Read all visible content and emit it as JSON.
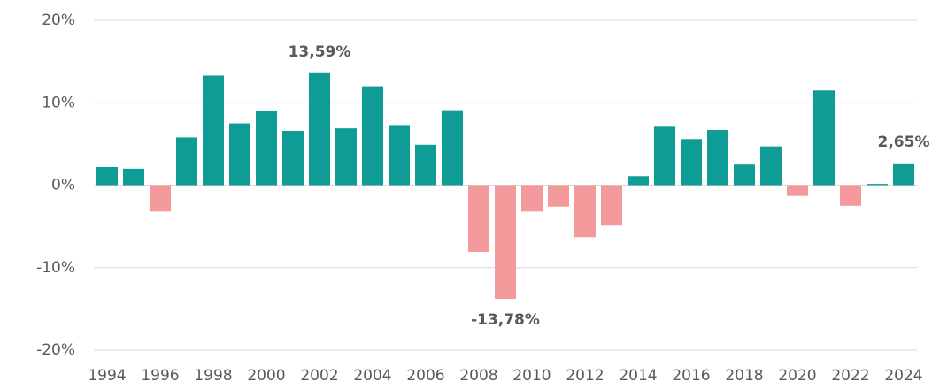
{
  "chart_data": {
    "type": "bar",
    "categories": [
      "1994",
      null,
      "1996",
      null,
      "1998",
      null,
      "2000",
      null,
      "2002",
      null,
      "2004",
      null,
      "2006",
      null,
      "2008",
      null,
      "2010",
      null,
      "2012",
      null,
      "2014",
      null,
      "2016",
      null,
      "2018",
      null,
      "2020",
      null,
      "2022",
      null,
      "2024"
    ],
    "values": [
      2.2,
      2.0,
      -3.2,
      5.8,
      13.3,
      7.5,
      9.0,
      6.6,
      13.59,
      6.9,
      12.0,
      7.3,
      4.9,
      9.1,
      -8.1,
      -13.78,
      -3.2,
      -2.6,
      -6.3,
      -4.9,
      1.1,
      7.1,
      5.6,
      6.7,
      2.5,
      4.7,
      -1.3,
      11.5,
      -2.5,
      0.15,
      2.65
    ],
    "value_labels": [
      null,
      null,
      null,
      null,
      null,
      null,
      null,
      null,
      "13,59%",
      null,
      null,
      null,
      null,
      null,
      null,
      "-13,78%",
      null,
      null,
      null,
      null,
      null,
      null,
      null,
      null,
      null,
      null,
      null,
      null,
      null,
      null,
      "2,65%"
    ],
    "color_positive": "#109c96",
    "color_negative": "#f4999c",
    "ylim": [
      -20,
      20
    ],
    "yticks": [
      {
        "value": -20,
        "label": "-20%"
      },
      {
        "value": -10,
        "label": "-10%"
      },
      {
        "value": 0,
        "label": "0%"
      },
      {
        "value": 10,
        "label": "10%"
      },
      {
        "value": 20,
        "label": "20%"
      }
    ],
    "grid": true
  }
}
